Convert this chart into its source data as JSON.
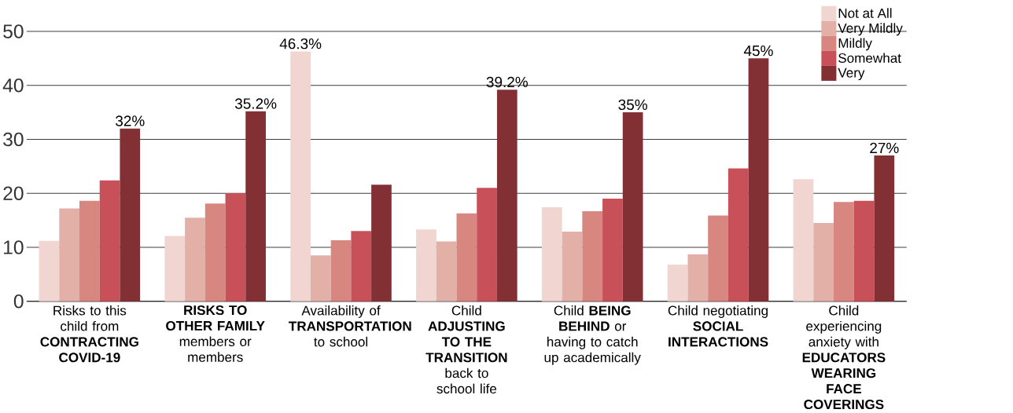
{
  "chart_data": {
    "type": "bar",
    "categories": [
      "Risks to this child from **CONTRACTING COVID-19**",
      "**RISKS TO OTHER FAMILY** members or members",
      "Availability of **TRANSPORTATION** to school",
      "Child **ADJUSTING TO THE TRANSITION** back to school life",
      "Child **BEING BEHIND** or having to catch up academically",
      "Child negotiating **SOCIAL INTERACTIONS**",
      "Child experiencing anxiety with **EDUCATORS WEARING FACE COVERINGS**"
    ],
    "series": [
      {
        "name": "Not at All",
        "color": "#f0d5d0",
        "values": [
          11.2,
          12.1,
          46.3,
          13.3,
          17.4,
          6.8,
          22.6
        ],
        "value_labels": [
          null,
          null,
          "46.3%",
          null,
          null,
          null,
          null
        ]
      },
      {
        "name": "Very Mildly",
        "color": "#e3b0a8",
        "values": [
          17.2,
          15.5,
          8.5,
          11.1,
          12.9,
          8.7,
          14.5
        ]
      },
      {
        "name": "Mildly",
        "color": "#d88680",
        "values": [
          18.6,
          18.1,
          11.3,
          16.3,
          16.7,
          15.9,
          18.4
        ]
      },
      {
        "name": "Somewhat",
        "color": "#c85058",
        "values": [
          22.4,
          20,
          13,
          21,
          19,
          24.6,
          18.6
        ]
      },
      {
        "name": "Very",
        "color": "#833035",
        "values": [
          32,
          35.2,
          21.6,
          39.2,
          35,
          45,
          27
        ],
        "value_labels": [
          "32%",
          "35.2%",
          null,
          "39.2%",
          "35%",
          "45%",
          "27%"
        ]
      }
    ],
    "ylim": [
      0,
      50
    ],
    "yticks": [
      0,
      10,
      20,
      30,
      40,
      50
    ],
    "grid": "y",
    "legend": "top right"
  }
}
